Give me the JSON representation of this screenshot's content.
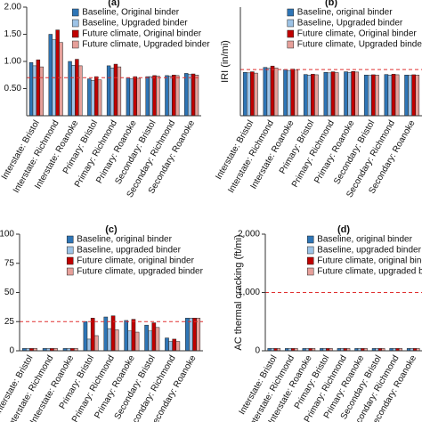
{
  "chart_data": [
    {
      "type": "bar",
      "title": "(a)",
      "categories": [
        "Interstate: Bristol",
        "Interstate: Richmond",
        "Interstate: Roanoke",
        "Primary: Bristol",
        "Primary: Richmond",
        "Primary: Roanoke",
        "Secondary: Bristol",
        "Secondary: Richmond",
        "Secondary: Roanoke"
      ],
      "series": [
        {
          "name": "Baseline, Original binder",
          "color": "#2e75b6",
          "values": [
            0.98,
            1.5,
            1.0,
            0.68,
            0.92,
            0.7,
            0.72,
            0.74,
            0.78
          ]
        },
        {
          "name": "Baseline, Upgraded binder",
          "color": "#9dc3e6",
          "values": [
            0.92,
            1.4,
            0.93,
            0.65,
            0.88,
            0.68,
            0.72,
            0.73,
            0.76
          ]
        },
        {
          "name": "Future climate, Original binder",
          "color": "#c00000",
          "values": [
            1.03,
            1.58,
            1.04,
            0.72,
            0.95,
            0.72,
            0.74,
            0.75,
            0.77
          ]
        },
        {
          "name": "Future climate, Upgraded binder",
          "color": "#e6a09a",
          "values": [
            0.9,
            1.35,
            0.92,
            0.66,
            0.9,
            0.69,
            0.73,
            0.74,
            0.75
          ]
        }
      ],
      "ylim": [
        0,
        2
      ],
      "yticks": [
        {
          "value": 0.5,
          "label": "0.50"
        },
        {
          "value": 1,
          "label": "1.00"
        },
        {
          "value": 1.5,
          "label": "1.50"
        },
        {
          "value": 2,
          "label": "2.00"
        }
      ],
      "threshold": 0.7
    },
    {
      "type": "bar",
      "title": "(b)",
      "ylabel": "IRI (in/mi)",
      "categories": [
        "Interstate: Bristol",
        "Interstate: Richmond",
        "Interstate: Roanoke",
        "Primary: Bristol",
        "Primary: Richmond",
        "Primary: Roanoke",
        "Secondary: Bristol",
        "Secondary: Richmond",
        "Secondary: Roanoke"
      ],
      "series": [
        {
          "name": "Baseline, original binder",
          "color": "#2e75b6",
          "values": [
            160,
            178,
            170,
            152,
            160,
            162,
            150,
            152,
            150
          ]
        },
        {
          "name": "Baseline, Upgraded binder",
          "color": "#9dc3e6",
          "values": [
            158,
            175,
            167,
            150,
            158,
            160,
            149,
            150,
            149
          ]
        },
        {
          "name": "Future climate, Original binder",
          "color": "#c00000",
          "values": [
            162,
            183,
            172,
            153,
            162,
            163,
            151,
            153,
            151
          ]
        },
        {
          "name": "Future climate, Upgraded binder",
          "color": "#e6a09a",
          "values": [
            157,
            176,
            168,
            151,
            159,
            161,
            150,
            151,
            150
          ]
        }
      ],
      "ylim": [
        0,
        400
      ],
      "threshold": 170
    },
    {
      "type": "bar",
      "title": "(c)",
      "categories": [
        "Interstate: Bristol",
        "Interstate: Richmond",
        "Interstate: Roanoke",
        "Primary: Bristol",
        "Primary: Richmond",
        "Primary: Roanoke",
        "Secondary: Bristol",
        "Secondary: Richmond",
        "Secondary: Roanoke"
      ],
      "series": [
        {
          "name": "Baseline, original binder",
          "color": "#2e75b6",
          "values": [
            2,
            2,
            2,
            25,
            29,
            26,
            22,
            11,
            28
          ]
        },
        {
          "name": "Baseline, upgraded binder",
          "color": "#9dc3e6",
          "values": [
            2,
            2,
            2,
            10,
            19,
            17,
            17,
            8,
            28
          ]
        },
        {
          "name": "Future climate, original binder",
          "color": "#c00000",
          "values": [
            2,
            2,
            2,
            28,
            30,
            27,
            24,
            10,
            28
          ]
        },
        {
          "name": "Future climate, upgraded binder",
          "color": "#e6a09a",
          "values": [
            2,
            2,
            2,
            13,
            18,
            16,
            20,
            8,
            28
          ]
        }
      ],
      "ylim": [
        0,
        100
      ],
      "yticks": [
        0,
        25,
        50,
        75,
        100
      ],
      "threshold": 25
    },
    {
      "type": "bar",
      "title": "(d)",
      "ylabel": "AC thermal cracking (ft/mi)",
      "categories": [
        "Interstate: Bristol",
        "Interstate: Richmond",
        "Interstate: Roanoke",
        "Primary: Bristol",
        "Primary: Richmond",
        "Primary: Roanoke",
        "Secondary: Bristol",
        "Secondary: Richmond",
        "Secondary: Roanoke"
      ],
      "series": [
        {
          "name": "Baseline, original binder",
          "color": "#2e75b6",
          "values": [
            40,
            40,
            40,
            40,
            40,
            40,
            40,
            40,
            40
          ]
        },
        {
          "name": "Baseline, upgraded binder",
          "color": "#9dc3e6",
          "values": [
            40,
            40,
            40,
            40,
            40,
            40,
            40,
            40,
            40
          ]
        },
        {
          "name": "Future climate, original binder",
          "color": "#c00000",
          "values": [
            40,
            40,
            40,
            40,
            40,
            40,
            40,
            40,
            40
          ]
        },
        {
          "name": "Future climate, upgraded binder",
          "color": "#e6a09a",
          "values": [
            40,
            40,
            40,
            40,
            40,
            40,
            40,
            40,
            40
          ]
        }
      ],
      "ylim": [
        0,
        2000
      ],
      "yticks": [
        0,
        {
          "value": 1000,
          "label": "1,000"
        },
        {
          "value": 2000,
          "label": "2,000"
        }
      ],
      "threshold": 1000
    }
  ]
}
